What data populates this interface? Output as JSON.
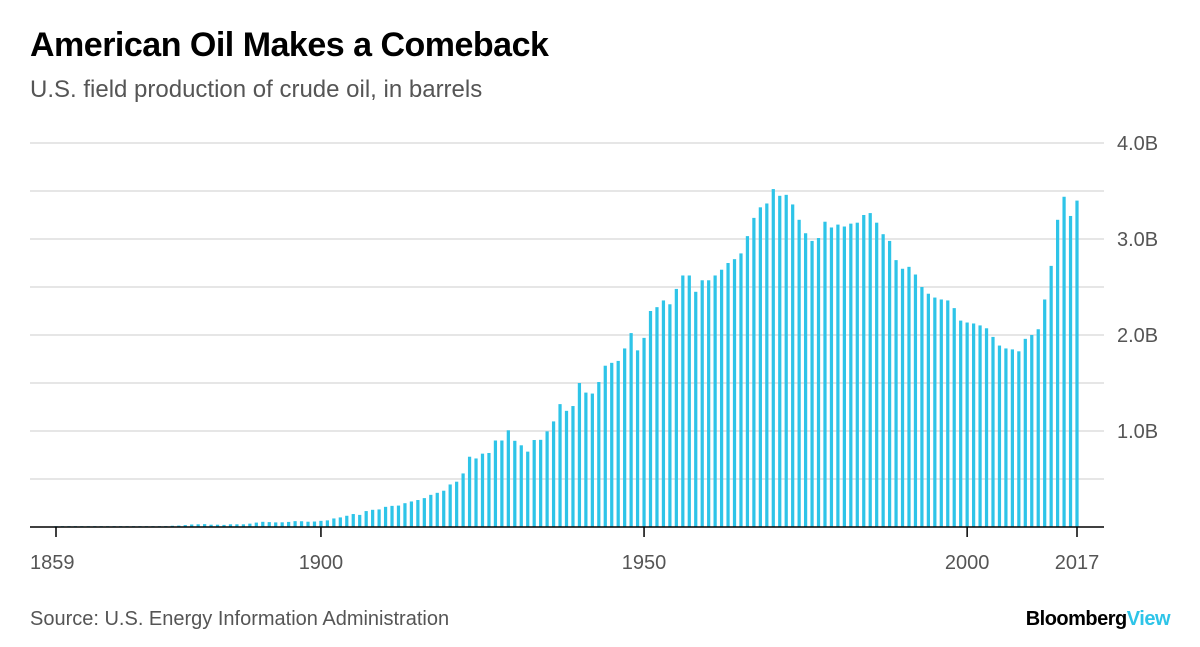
{
  "header": {
    "title": "American Oil Makes a Comeback",
    "subtitle": "U.S. field production of crude oil, in barrels"
  },
  "footer": {
    "source": "Source: U.S. Energy Information Administration",
    "brand_part1": "Bloomberg",
    "brand_part2": "View"
  },
  "colors": {
    "bar": "#2ec4e8",
    "grid": "#e6e6e6",
    "axis": "#000000",
    "tick_text": "#555555",
    "brand_accent": "#2ec4e8"
  },
  "chart_data": {
    "type": "bar",
    "title": "American Oil Makes a Comeback",
    "subtitle": "U.S. field production of crude oil, in barrels",
    "unit": "billions of barrels",
    "x_start_year": 1859,
    "x_end_year": 2017,
    "x_ticks": [
      {
        "year": 1859,
        "label": "1859"
      },
      {
        "year": 1900,
        "label": "1900"
      },
      {
        "year": 1950,
        "label": "1950"
      },
      {
        "year": 2000,
        "label": "2000"
      },
      {
        "year": 2017,
        "label": "2017"
      }
    ],
    "ylim": [
      0,
      4.0
    ],
    "y_gridlines": [
      0.5,
      1.0,
      1.5,
      2.0,
      2.5,
      3.0,
      3.5,
      4.0
    ],
    "y_ticks": [
      {
        "value": 1.0,
        "label": "1.0B"
      },
      {
        "value": 2.0,
        "label": "2.0B"
      },
      {
        "value": 3.0,
        "label": "3.0B"
      },
      {
        "value": 4.0,
        "label": "4.0B"
      }
    ],
    "y_axis_side": "right",
    "grid": true,
    "legend": "none",
    "series": [
      {
        "values": [
          [
            1859,
            0.002
          ],
          [
            1860,
            0.003
          ],
          [
            1861,
            0.004
          ],
          [
            1862,
            0.004
          ],
          [
            1863,
            0.004
          ],
          [
            1864,
            0.004
          ],
          [
            1865,
            0.004
          ],
          [
            1866,
            0.004
          ],
          [
            1867,
            0.004
          ],
          [
            1868,
            0.004
          ],
          [
            1869,
            0.004
          ],
          [
            1870,
            0.005
          ],
          [
            1871,
            0.005
          ],
          [
            1872,
            0.006
          ],
          [
            1873,
            0.006
          ],
          [
            1874,
            0.006
          ],
          [
            1875,
            0.006
          ],
          [
            1876,
            0.009
          ],
          [
            1877,
            0.013
          ],
          [
            1878,
            0.015
          ],
          [
            1879,
            0.02
          ],
          [
            1880,
            0.026
          ],
          [
            1881,
            0.028
          ],
          [
            1882,
            0.03
          ],
          [
            1883,
            0.024
          ],
          [
            1884,
            0.024
          ],
          [
            1885,
            0.022
          ],
          [
            1886,
            0.028
          ],
          [
            1887,
            0.028
          ],
          [
            1888,
            0.028
          ],
          [
            1889,
            0.035
          ],
          [
            1890,
            0.046
          ],
          [
            1891,
            0.054
          ],
          [
            1892,
            0.051
          ],
          [
            1893,
            0.048
          ],
          [
            1894,
            0.049
          ],
          [
            1895,
            0.053
          ],
          [
            1896,
            0.061
          ],
          [
            1897,
            0.06
          ],
          [
            1898,
            0.055
          ],
          [
            1899,
            0.057
          ],
          [
            1900,
            0.064
          ],
          [
            1901,
            0.069
          ],
          [
            1902,
            0.089
          ],
          [
            1903,
            0.1
          ],
          [
            1904,
            0.117
          ],
          [
            1905,
            0.135
          ],
          [
            1906,
            0.126
          ],
          [
            1907,
            0.166
          ],
          [
            1908,
            0.179
          ],
          [
            1909,
            0.183
          ],
          [
            1910,
            0.21
          ],
          [
            1911,
            0.22
          ],
          [
            1912,
            0.223
          ],
          [
            1913,
            0.248
          ],
          [
            1914,
            0.266
          ],
          [
            1915,
            0.281
          ],
          [
            1916,
            0.301
          ],
          [
            1917,
            0.335
          ],
          [
            1918,
            0.356
          ],
          [
            1919,
            0.378
          ],
          [
            1920,
            0.443
          ],
          [
            1921,
            0.472
          ],
          [
            1922,
            0.558
          ],
          [
            1923,
            0.732
          ],
          [
            1924,
            0.714
          ],
          [
            1925,
            0.764
          ],
          [
            1926,
            0.771
          ],
          [
            1927,
            0.901
          ],
          [
            1928,
            0.901
          ],
          [
            1929,
            1.007
          ],
          [
            1930,
            0.898
          ],
          [
            1931,
            0.851
          ],
          [
            1932,
            0.785
          ],
          [
            1933,
            0.906
          ],
          [
            1934,
            0.908
          ],
          [
            1935,
            0.997
          ],
          [
            1936,
            1.1
          ],
          [
            1937,
            1.28
          ],
          [
            1938,
            1.21
          ],
          [
            1939,
            1.26
          ],
          [
            1940,
            1.5
          ],
          [
            1941,
            1.4
          ],
          [
            1942,
            1.39
          ],
          [
            1943,
            1.51
          ],
          [
            1944,
            1.68
          ],
          [
            1945,
            1.71
          ],
          [
            1946,
            1.73
          ],
          [
            1947,
            1.86
          ],
          [
            1948,
            2.02
          ],
          [
            1949,
            1.84
          ],
          [
            1950,
            1.97
          ],
          [
            1951,
            2.25
          ],
          [
            1952,
            2.29
          ],
          [
            1953,
            2.36
          ],
          [
            1954,
            2.32
          ],
          [
            1955,
            2.48
          ],
          [
            1956,
            2.62
          ],
          [
            1957,
            2.62
          ],
          [
            1958,
            2.45
          ],
          [
            1959,
            2.57
          ],
          [
            1960,
            2.57
          ],
          [
            1961,
            2.62
          ],
          [
            1962,
            2.68
          ],
          [
            1963,
            2.75
          ],
          [
            1964,
            2.79
          ],
          [
            1965,
            2.85
          ],
          [
            1966,
            3.03
          ],
          [
            1967,
            3.22
          ],
          [
            1968,
            3.33
          ],
          [
            1969,
            3.37
          ],
          [
            1970,
            3.52
          ],
          [
            1971,
            3.45
          ],
          [
            1972,
            3.46
          ],
          [
            1973,
            3.36
          ],
          [
            1974,
            3.2
          ],
          [
            1975,
            3.06
          ],
          [
            1976,
            2.98
          ],
          [
            1977,
            3.01
          ],
          [
            1978,
            3.18
          ],
          [
            1979,
            3.12
          ],
          [
            1980,
            3.15
          ],
          [
            1981,
            3.13
          ],
          [
            1982,
            3.16
          ],
          [
            1983,
            3.17
          ],
          [
            1984,
            3.25
          ],
          [
            1985,
            3.27
          ],
          [
            1986,
            3.17
          ],
          [
            1987,
            3.05
          ],
          [
            1988,
            2.98
          ],
          [
            1989,
            2.78
          ],
          [
            1990,
            2.69
          ],
          [
            1991,
            2.71
          ],
          [
            1992,
            2.63
          ],
          [
            1993,
            2.5
          ],
          [
            1994,
            2.43
          ],
          [
            1995,
            2.39
          ],
          [
            1996,
            2.37
          ],
          [
            1997,
            2.36
          ],
          [
            1998,
            2.28
          ],
          [
            1999,
            2.15
          ],
          [
            2000,
            2.13
          ],
          [
            2001,
            2.12
          ],
          [
            2002,
            2.1
          ],
          [
            2003,
            2.07
          ],
          [
            2004,
            1.98
          ],
          [
            2005,
            1.89
          ],
          [
            2006,
            1.86
          ],
          [
            2007,
            1.85
          ],
          [
            2008,
            1.83
          ],
          [
            2009,
            1.96
          ],
          [
            2010,
            2.0
          ],
          [
            2011,
            2.06
          ],
          [
            2012,
            2.37
          ],
          [
            2013,
            2.72
          ],
          [
            2014,
            3.2
          ],
          [
            2015,
            3.44
          ],
          [
            2016,
            3.24
          ],
          [
            2017,
            3.4
          ]
        ]
      }
    ]
  }
}
